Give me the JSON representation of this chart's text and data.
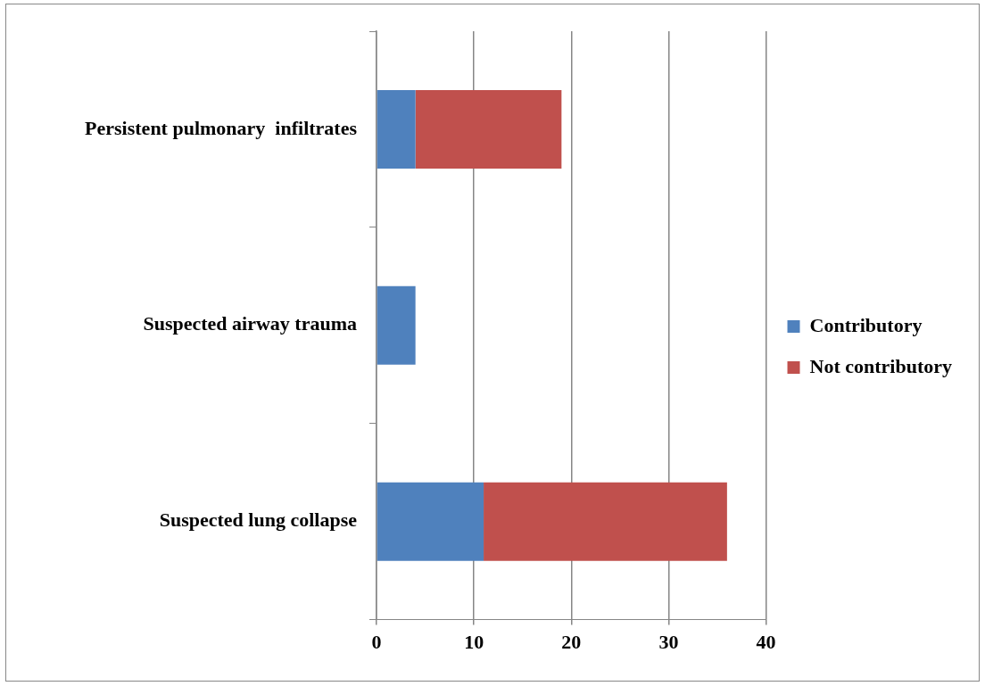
{
  "chart_data": {
    "type": "bar",
    "orientation": "horizontal",
    "stacked": true,
    "categories": [
      "Persistent pulmonary  infiltrates",
      "Suspected airway trauma",
      "Suspected lung collapse"
    ],
    "series": [
      {
        "name": "Contributory",
        "color": "#4f81bd",
        "values": [
          4,
          4,
          11
        ]
      },
      {
        "name": "Not contributory",
        "color": "#c0504d",
        "values": [
          15,
          0,
          25
        ]
      }
    ],
    "xlim": [
      0,
      40
    ],
    "xticks": [
      0,
      10,
      20,
      30,
      40
    ],
    "grid": "x",
    "legend": "right"
  }
}
